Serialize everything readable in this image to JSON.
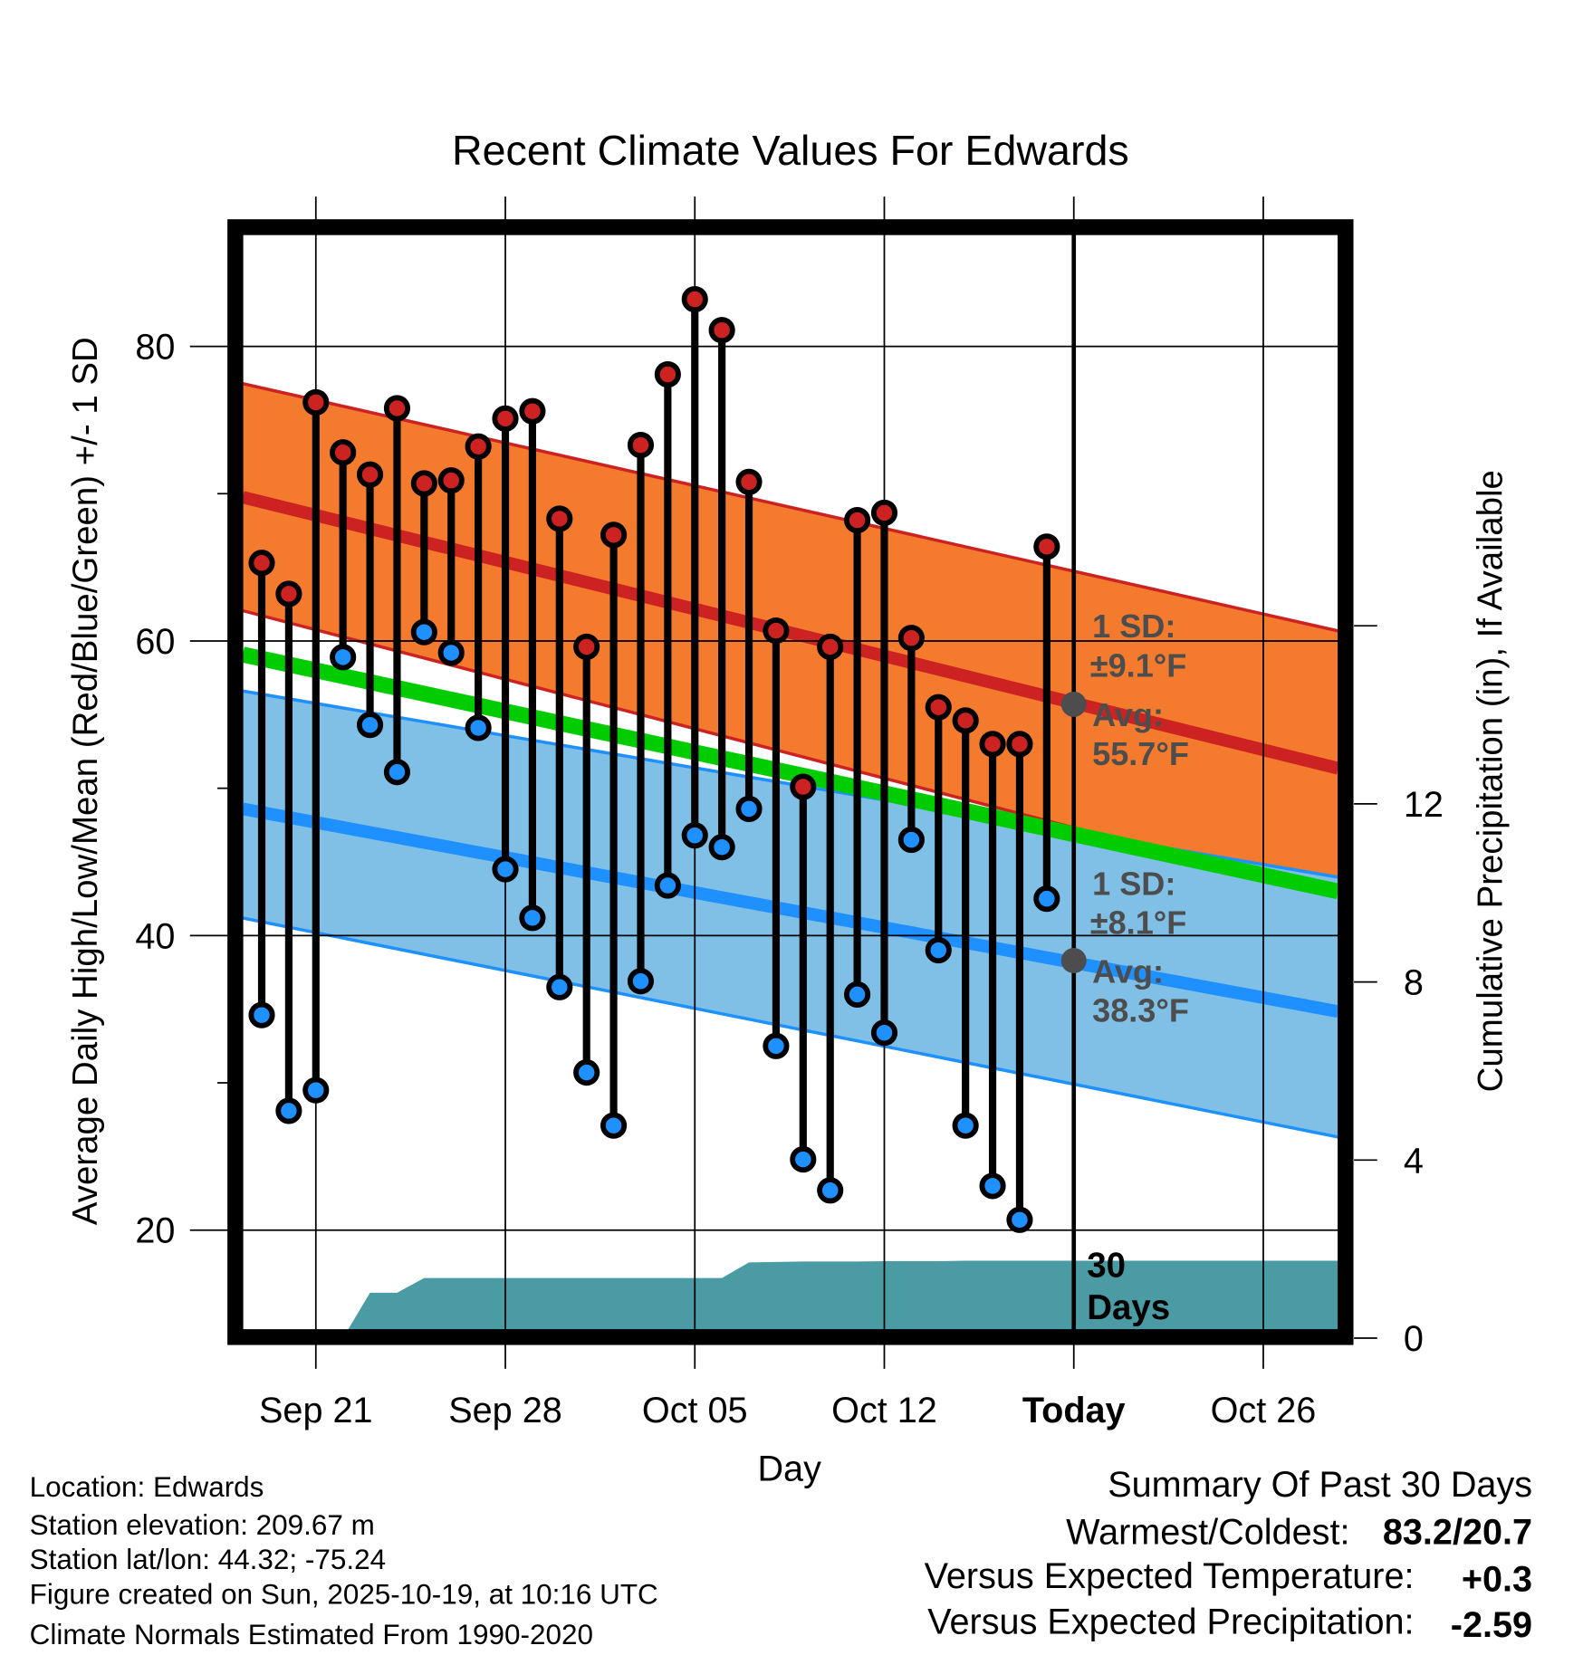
{
  "chart_data": {
    "type": "line",
    "title": "Recent Climate Values For Edwards",
    "xlabel": "Day",
    "ylabel": "Average Daily High/Low/Mean (Red/Blue/Green) +/- 1 SD",
    "y2label": "Cumulative Precipitation (in), If Available",
    "ylim": [
      13.2,
      87.9
    ],
    "y2lim": [
      0,
      18
    ],
    "yticks": [
      "20",
      "40",
      "60",
      "80"
    ],
    "y_minor_ticks": [
      30,
      50,
      70
    ],
    "y2ticks": [
      "0",
      "4",
      "8",
      "12"
    ],
    "xticks": [
      {
        "label": "Sep 21",
        "day": -28
      },
      {
        "label": "Sep 28",
        "day": -21
      },
      {
        "label": "Oct 05",
        "day": -14
      },
      {
        "label": "Oct 12",
        "day": -7
      },
      {
        "label": "Today",
        "day": 0
      },
      {
        "label": "Oct 26",
        "day": 7
      }
    ],
    "grid": true,
    "dates": [
      "Sep 19",
      "Sep 20",
      "Sep 21",
      "Sep 22",
      "Sep 23",
      "Sep 24",
      "Sep 25",
      "Sep 26",
      "Sep 27",
      "Sep 28",
      "Sep 29",
      "Sep 30",
      "Oct 01",
      "Oct 02",
      "Oct 03",
      "Oct 04",
      "Oct 05",
      "Oct 06",
      "Oct 07",
      "Oct 08",
      "Oct 09",
      "Oct 10",
      "Oct 11",
      "Oct 12",
      "Oct 13",
      "Oct 14",
      "Oct 15",
      "Oct 16",
      "Oct 17",
      "Oct 18"
    ],
    "series": [
      {
        "name": "Daily High",
        "color": "#cc2222",
        "values": [
          65.3,
          63.2,
          76.2,
          72.8,
          71.3,
          75.8,
          70.7,
          70.9,
          73.2,
          75.1,
          75.6,
          68.3,
          59.6,
          67.2,
          73.3,
          78.1,
          83.2,
          81.1,
          70.8,
          60.7,
          50.1,
          59.6,
          68.2,
          68.7,
          60.2,
          55.5,
          54.6,
          53.0,
          53.0,
          66.4
        ]
      },
      {
        "name": "Daily Low",
        "color": "#1e90ff",
        "values": [
          34.6,
          28.1,
          29.5,
          58.9,
          54.3,
          51.1,
          60.6,
          59.2,
          54.1,
          44.5,
          41.2,
          36.5,
          30.7,
          27.1,
          36.9,
          43.4,
          46.8,
          46.0,
          48.6,
          32.5,
          24.8,
          22.7,
          36.0,
          33.4,
          46.5,
          39.0,
          27.1,
          23.0,
          20.7,
          42.5
        ]
      },
      {
        "name": "Cumulative Precipitation",
        "color": "#4a9ba3",
        "values": [
          0,
          0,
          0,
          0,
          1.02,
          1.02,
          1.35,
          1.35,
          1.35,
          1.35,
          1.35,
          1.35,
          1.35,
          1.35,
          1.35,
          1.35,
          1.35,
          1.35,
          1.7,
          1.71,
          1.72,
          1.72,
          1.72,
          1.73,
          1.73,
          1.73,
          1.74,
          1.74,
          1.74,
          1.74
        ]
      }
    ],
    "normals": {
      "days": [
        -31,
        9
      ],
      "high_upper": [
        77.6,
        61.0
      ],
      "high_avg": [
        69.9,
        51.7
      ],
      "high_lower": [
        62.2,
        43.0
      ],
      "mean": [
        59.2,
        43.3
      ],
      "low_upper": [
        56.7,
        44.2
      ],
      "low_avg": [
        48.7,
        35.1
      ],
      "low_lower": [
        41.3,
        26.6
      ],
      "colors": {
        "high_band": "#f47a2e",
        "high_line": "#cc2222",
        "mean_line": "#00cc00",
        "low_band": "#80bfe6",
        "low_line": "#1e90ff"
      }
    },
    "annotations": {
      "high_sd_label": "1 SD:",
      "high_sd_value": "±9.1°F",
      "high_avg_label": "Avg:",
      "high_avg_value": "55.7°F",
      "low_sd_label": "1 SD:",
      "low_sd_value": "±8.1°F",
      "low_avg_label": "Avg:",
      "low_avg_value": "38.3°F",
      "today_high_avg": 55.7,
      "today_low_avg": 38.3,
      "period_line1": "30",
      "period_line2": "Days"
    }
  },
  "footer": {
    "location": "Location: Edwards",
    "elevation": "Station elevation: 209.67 m",
    "latlon": "Station lat/lon: 44.32; -75.24",
    "created": "Figure created on Sun, 2025-10-19, at 10:16 UTC",
    "normals": "Climate Normals Estimated From 1990-2020"
  },
  "summary": {
    "title": "Summary Of Past 30 Days",
    "warm_cold_label": "Warmest/Coldest:",
    "warm_cold_value": "83.2/20.7",
    "temp_label": "Versus Expected Temperature:",
    "temp_value": "+0.3",
    "temp_color": "#cc2222",
    "precip_label": "Versus Expected Precipitation:",
    "precip_value": "-2.59",
    "precip_color": "#a0522d"
  }
}
